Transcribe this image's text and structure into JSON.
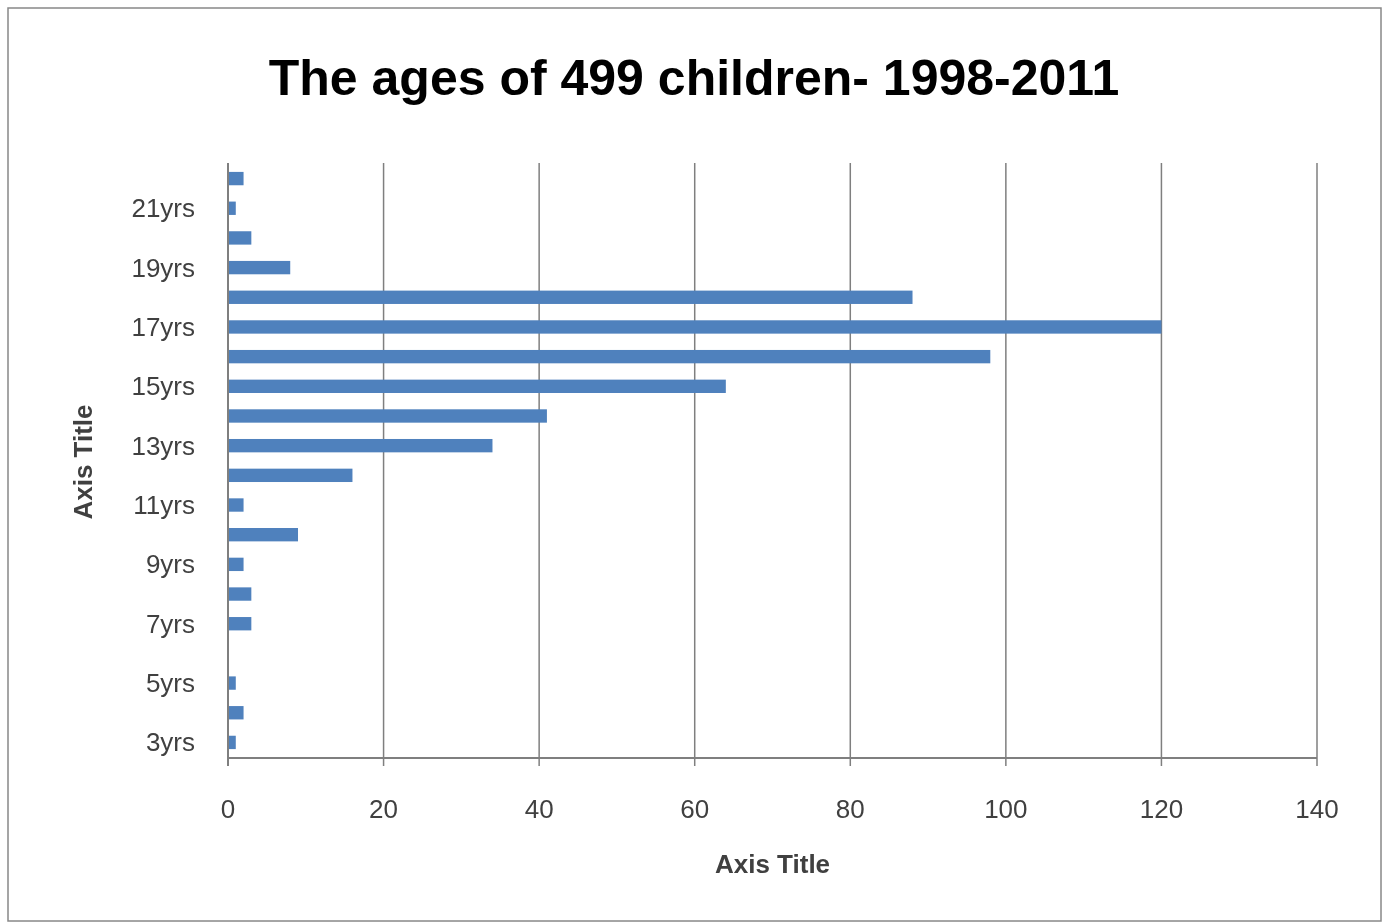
{
  "chart_data": {
    "type": "bar",
    "orientation": "horizontal",
    "title": "The ages of 499 children- 1998-2011",
    "xlabel": "Axis Title",
    "ylabel": "Axis Title",
    "categories": [
      null,
      "21yrs",
      null,
      "19yrs",
      null,
      "17yrs",
      null,
      "15yrs",
      null,
      "13yrs",
      null,
      "11yrs",
      null,
      "9yrs",
      null,
      "7yrs",
      null,
      "5yrs",
      null,
      "3yrs"
    ],
    "values": [
      2,
      1,
      3,
      8,
      88,
      120,
      98,
      64,
      41,
      34,
      16,
      2,
      9,
      2,
      3,
      3,
      0,
      1,
      2,
      1
    ],
    "color": "#4f81bd",
    "xlim": [
      0,
      140
    ],
    "xticks": [
      0,
      20,
      40,
      60,
      80,
      100,
      120,
      140
    ],
    "grid": "x"
  }
}
